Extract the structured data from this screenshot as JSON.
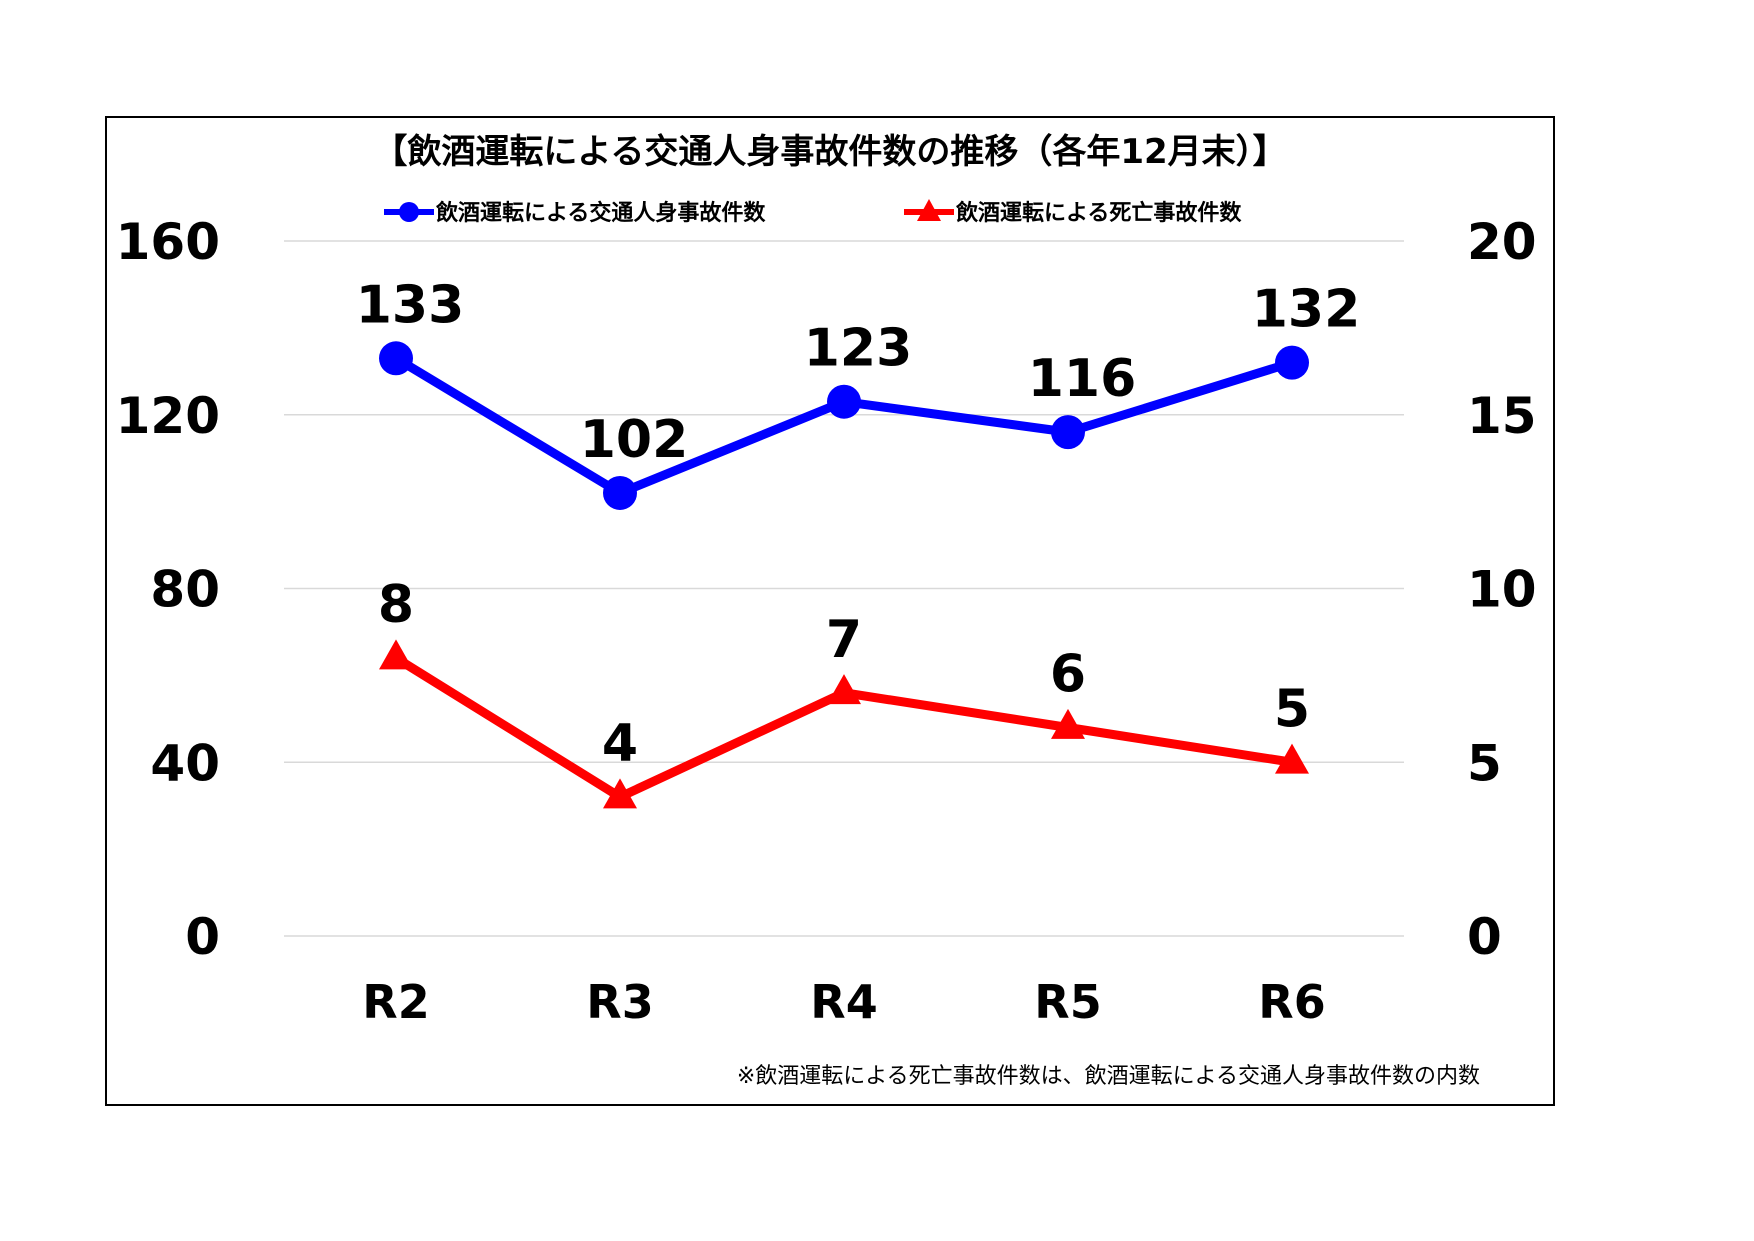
{
  "chart_data": {
    "type": "line",
    "title": "【飲酒運転による交通人身事故件数の推移（各年12月末）】",
    "categories": [
      "R2",
      "R3",
      "R4",
      "R5",
      "R6"
    ],
    "y_left": {
      "min": 0,
      "max": 160,
      "ticks": [
        "0",
        "40",
        "80",
        "120",
        "160"
      ]
    },
    "y_right": {
      "min": 0,
      "max": 20,
      "ticks": [
        "0",
        "5",
        "10",
        "15",
        "20"
      ]
    },
    "grid": true,
    "legend_position": "top",
    "series": [
      {
        "name": "飲酒運転による交通人身事故件数",
        "axis": "left",
        "marker": "circle",
        "color": "#0000ff",
        "values": [
          133,
          102,
          123,
          116,
          132
        ],
        "labels": [
          "133",
          "102",
          "123",
          "116",
          "132"
        ]
      },
      {
        "name": "飲酒運転による死亡事故件数",
        "axis": "right",
        "marker": "triangle",
        "color": "#ff0000",
        "values": [
          8,
          4,
          7,
          6,
          5
        ],
        "labels": [
          "8",
          "4",
          "7",
          "6",
          "5"
        ]
      }
    ],
    "note": "※飲酒運転による死亡事故件数は、飲酒運転による交通人身事故件数の内数"
  }
}
